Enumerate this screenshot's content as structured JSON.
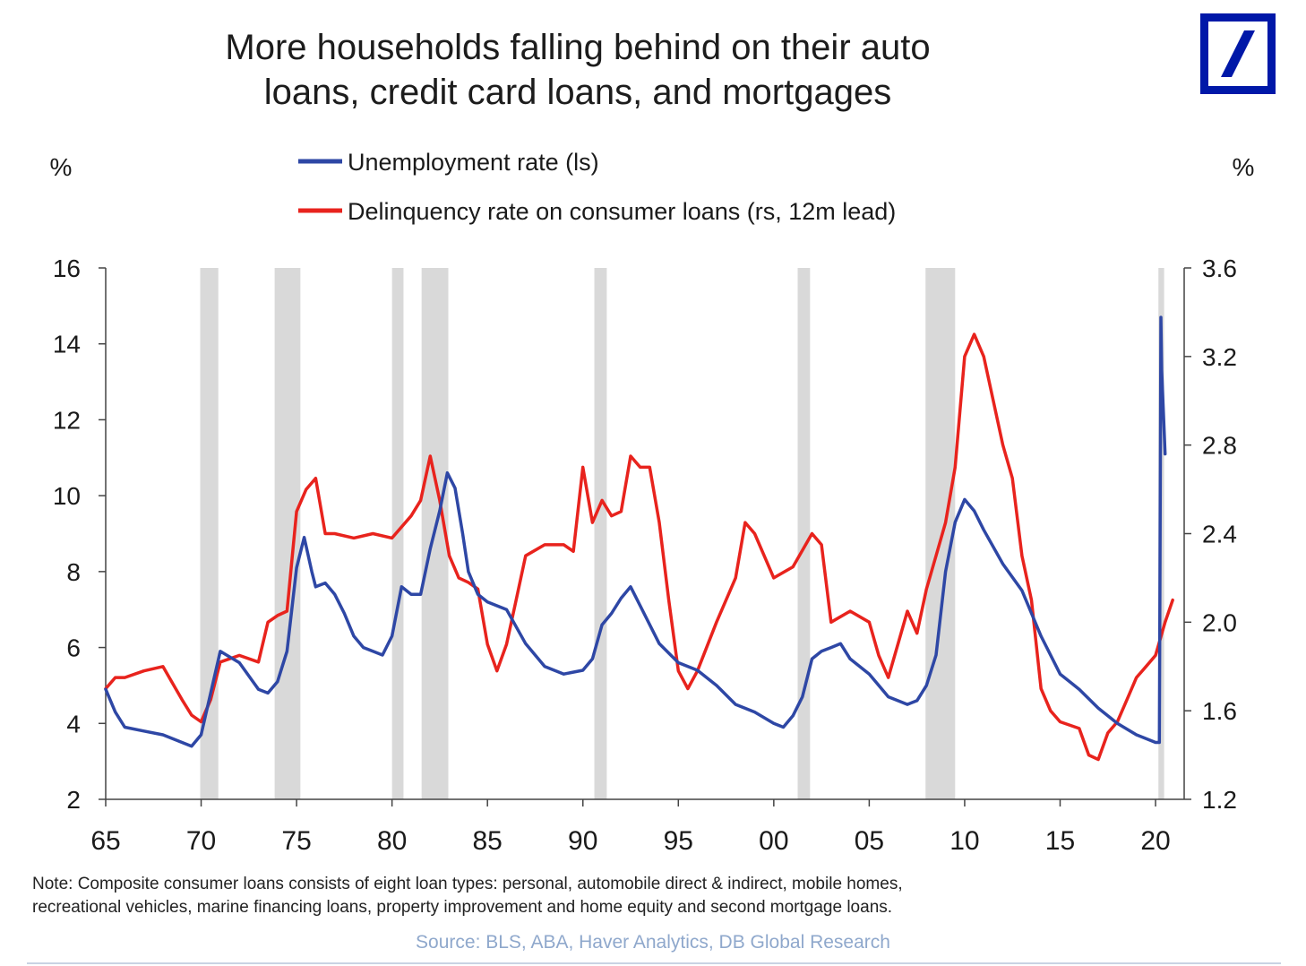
{
  "title_lines": [
    "More households falling behind on their auto",
    "loans, credit card loans, and mortgages"
  ],
  "logo": {
    "name": "deutsche-bank-logo",
    "color": "#0018a8"
  },
  "note_lines": [
    "Note: Composite consumer loans consists of eight loan types: personal, automobile direct & indirect, mobile homes,",
    "recreational vehicles, marine financing loans, property improvement and home equity and second mortgage loans."
  ],
  "source": "Source: BLS, ABA, Haver Analytics, DB Global Research",
  "chart_data": {
    "type": "line",
    "left_unit": "%",
    "right_unit": "%",
    "x_ticks": [
      "65",
      "70",
      "75",
      "80",
      "85",
      "90",
      "95",
      "00",
      "05",
      "10",
      "15",
      "20"
    ],
    "x_tick_years": [
      1965,
      1970,
      1975,
      1980,
      1985,
      1990,
      1995,
      2000,
      2005,
      2010,
      2015,
      2020
    ],
    "xlim": [
      1965,
      2021.5
    ],
    "y_left": {
      "ticks": [
        "2",
        "4",
        "6",
        "8",
        "10",
        "12",
        "14",
        "16"
      ],
      "lim": [
        2,
        16
      ]
    },
    "y_right": {
      "ticks": [
        "1.2",
        "1.6",
        "2.0",
        "2.4",
        "2.8",
        "3.2",
        "3.6"
      ],
      "lim": [
        1.2,
        3.6
      ]
    },
    "legend_position": "top-center",
    "grid": false,
    "recessions": [
      [
        1969.95,
        1970.9
      ],
      [
        1973.85,
        1975.2
      ],
      [
        1980.0,
        1980.6
      ],
      [
        1981.55,
        1982.95
      ],
      [
        1990.6,
        1991.25
      ],
      [
        2001.25,
        2001.9
      ],
      [
        2007.95,
        2009.5
      ],
      [
        2020.15,
        2020.45
      ]
    ],
    "series": [
      {
        "name": "Unemployment rate (ls)",
        "axis": "left",
        "color": "#2e47a5",
        "x": [
          1965,
          1965.5,
          1966,
          1967,
          1968,
          1969,
          1969.5,
          1970,
          1970.5,
          1971,
          1972,
          1973,
          1973.5,
          1974,
          1974.5,
          1975,
          1975.4,
          1975.8,
          1976,
          1976.5,
          1977,
          1977.5,
          1978,
          1978.5,
          1979,
          1979.5,
          1980,
          1980.5,
          1981,
          1981.5,
          1982,
          1982.5,
          1982.9,
          1983.3,
          1983.7,
          1984,
          1984.5,
          1985,
          1986,
          1987,
          1988,
          1989,
          1990,
          1990.5,
          1991,
          1991.5,
          1992,
          1992.5,
          1993,
          1994,
          1995,
          1996,
          1997,
          1998,
          1999,
          2000,
          2000.5,
          2001,
          2001.5,
          2002,
          2002.5,
          2003,
          2003.5,
          2004,
          2005,
          2006,
          2006.5,
          2007,
          2007.5,
          2008,
          2008.5,
          2009,
          2009.5,
          2010,
          2010.5,
          2011,
          2012,
          2013,
          2014,
          2015,
          2016,
          2017,
          2018,
          2019,
          2019.5,
          2020.0,
          2020.2,
          2020.28,
          2020.32,
          2020.5
        ],
        "y": [
          4.9,
          4.3,
          3.9,
          3.8,
          3.7,
          3.5,
          3.4,
          3.7,
          4.8,
          5.9,
          5.6,
          4.9,
          4.8,
          5.1,
          5.9,
          8.1,
          8.9,
          8.0,
          7.6,
          7.7,
          7.4,
          6.9,
          6.3,
          6.0,
          5.9,
          5.8,
          6.3,
          7.6,
          7.4,
          7.4,
          8.6,
          9.6,
          10.6,
          10.2,
          9.0,
          8.0,
          7.4,
          7.2,
          7.0,
          6.1,
          5.5,
          5.3,
          5.4,
          5.7,
          6.6,
          6.9,
          7.3,
          7.6,
          7.1,
          6.1,
          5.6,
          5.4,
          5.0,
          4.5,
          4.3,
          4.0,
          3.9,
          4.2,
          4.7,
          5.7,
          5.9,
          6.0,
          6.1,
          5.7,
          5.3,
          4.7,
          4.6,
          4.5,
          4.6,
          5.0,
          5.8,
          8.0,
          9.3,
          9.9,
          9.6,
          9.1,
          8.2,
          7.5,
          6.3,
          5.3,
          4.9,
          4.4,
          4.0,
          3.7,
          3.6,
          3.5,
          3.5,
          14.7,
          13.3,
          11.1
        ]
      },
      {
        "name": "Delinquency rate on consumer loans (rs, 12m lead)",
        "axis": "right",
        "color": "#e8231d",
        "x": [
          1965,
          1965.5,
          1966,
          1967,
          1968,
          1969,
          1969.5,
          1970,
          1970.5,
          1971,
          1972,
          1973,
          1973.5,
          1974,
          1974.5,
          1975,
          1975.5,
          1976,
          1976.5,
          1977,
          1978,
          1979,
          1980,
          1981,
          1981.5,
          1982,
          1982.5,
          1983,
          1983.5,
          1984,
          1984.5,
          1985,
          1985.5,
          1986,
          1986.5,
          1987,
          1988,
          1989,
          1989.5,
          1990,
          1990.5,
          1991,
          1991.5,
          1992,
          1992.5,
          1993,
          1993.5,
          1994,
          1994.5,
          1995,
          1995.5,
          1996,
          1997,
          1998,
          1998.5,
          1999,
          2000,
          2001,
          2002,
          2002.5,
          2003,
          2004,
          2005,
          2005.5,
          2006,
          2006.5,
          2007,
          2007.5,
          2008,
          2008.5,
          2009,
          2009.5,
          2010,
          2010.5,
          2011,
          2011.5,
          2012,
          2012.5,
          2013,
          2013.5,
          2014,
          2014.5,
          2015,
          2016,
          2016.5,
          2017,
          2017.5,
          2018,
          2018.5,
          2019,
          2019.5,
          2020,
          2020.5,
          2020.9
        ],
        "y": [
          1.7,
          1.75,
          1.75,
          1.78,
          1.8,
          1.65,
          1.58,
          1.55,
          1.65,
          1.82,
          1.85,
          1.82,
          2.0,
          2.03,
          2.05,
          2.5,
          2.6,
          2.65,
          2.4,
          2.4,
          2.38,
          2.4,
          2.38,
          2.48,
          2.55,
          2.75,
          2.55,
          2.3,
          2.2,
          2.18,
          2.15,
          1.9,
          1.78,
          1.9,
          2.1,
          2.3,
          2.35,
          2.35,
          2.32,
          2.7,
          2.45,
          2.55,
          2.48,
          2.5,
          2.75,
          2.7,
          2.7,
          2.45,
          2.1,
          1.78,
          1.7,
          1.78,
          2.0,
          2.2,
          2.45,
          2.4,
          2.2,
          2.25,
          2.4,
          2.35,
          2.0,
          2.05,
          2.0,
          1.85,
          1.75,
          1.9,
          2.05,
          1.95,
          2.15,
          2.3,
          2.45,
          2.7,
          3.2,
          3.3,
          3.2,
          3.0,
          2.8,
          2.65,
          2.3,
          2.1,
          1.7,
          1.6,
          1.55,
          1.52,
          1.4,
          1.38,
          1.5,
          1.55,
          1.65,
          1.75,
          1.8,
          1.85,
          2.0,
          2.1
        ]
      }
    ]
  }
}
